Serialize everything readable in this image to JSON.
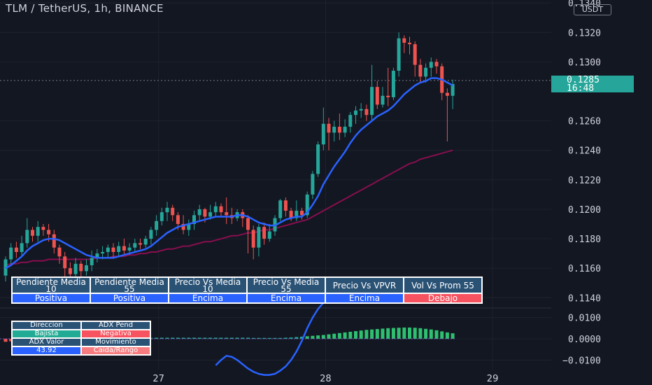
{
  "header": {
    "title": "TLM / TetherUS, 1h, BINANCE"
  },
  "price_axis": {
    "unit": "USDT"
  },
  "last_price": {
    "value": "0.1285",
    "countdown": "16:48"
  },
  "colors": {
    "background": "#131722",
    "bull": "#26a69a",
    "bear": "#ef5350",
    "ma_fast": "#2962ff",
    "ma_slow": "#880e4f",
    "grid": "#1e222d",
    "table_header": "#2a5275",
    "status_blue": "#2962ff",
    "status_red": "#f7525f",
    "status_green": "#22ab94",
    "status_pink": "#f77c80"
  },
  "status_table": {
    "headers": [
      "Pendiente Media 10",
      "Pendiente Media 55",
      "Precio Vs Media 10",
      "Precio Vs Media 55",
      "Precio Vs VPVR",
      "Vol Vs Prom 55"
    ],
    "values": [
      {
        "text": "Positiva",
        "color": "#2962ff"
      },
      {
        "text": "Positiva",
        "color": "#2962ff"
      },
      {
        "text": "Encima",
        "color": "#2962ff"
      },
      {
        "text": "Encima",
        "color": "#2962ff"
      },
      {
        "text": "Encima",
        "color": "#2962ff"
      },
      {
        "text": "Debajo",
        "color": "#f7525f"
      }
    ]
  },
  "adx_table": {
    "rows": [
      [
        {
          "text": "Direccion",
          "color": "#2a5275"
        },
        {
          "text": "ADX Pend",
          "color": "#2a5275"
        }
      ],
      [
        {
          "text": "Bajista",
          "color": "#22ab94"
        },
        {
          "text": "Negativa",
          "color": "#f7525f"
        }
      ],
      [
        {
          "text": "ADX Valor",
          "color": "#2a5275"
        },
        {
          "text": "Movimiento",
          "color": "#2a5275"
        }
      ],
      [
        {
          "text": "43.92",
          "color": "#2962ff"
        },
        {
          "text": "Caida/Rango",
          "color": "#f77c80"
        }
      ]
    ]
  },
  "chart_data": [
    {
      "type": "candlestick",
      "title": "TLM / TetherUS, 1h, BINANCE",
      "y_ticks": [
        "0.1140",
        "0.1160",
        "0.1180",
        "0.1200",
        "0.1220",
        "0.1240",
        "0.1260",
        "0.1300",
        "0.1320",
        "0.1340"
      ],
      "y_tick_values": [
        0.114,
        0.116,
        0.118,
        0.12,
        0.122,
        0.124,
        0.126,
        0.13,
        0.132,
        0.134
      ],
      "ylim": [
        0.1133,
        0.1342
      ],
      "x_ticks": [
        "27",
        "28",
        "29"
      ],
      "x_tick_index": [
        28.4,
        59.4,
        90.4
      ],
      "candles": [
        [
          0.1155,
          0.1166,
          0.1151,
          0.1168
        ],
        [
          0.1166,
          0.1174,
          0.1163,
          0.1177
        ],
        [
          0.1174,
          0.1171,
          0.1167,
          0.1178
        ],
        [
          0.1171,
          0.1177,
          0.1168,
          0.1182
        ],
        [
          0.1177,
          0.1186,
          0.1174,
          0.1194
        ],
        [
          0.1186,
          0.1182,
          0.1178,
          0.1188
        ],
        [
          0.1182,
          0.1188,
          0.1178,
          0.1192
        ],
        [
          0.1188,
          0.1186,
          0.1182,
          0.119
        ],
        [
          0.1186,
          0.1183,
          0.1178,
          0.119
        ],
        [
          0.1183,
          0.1174,
          0.117,
          0.1186
        ],
        [
          0.1174,
          0.1168,
          0.1163,
          0.1176
        ],
        [
          0.1168,
          0.116,
          0.1146,
          0.1171
        ],
        [
          0.116,
          0.1156,
          0.115,
          0.1164
        ],
        [
          0.1156,
          0.1163,
          0.1152,
          0.1167
        ],
        [
          0.1163,
          0.1158,
          0.1154,
          0.1165
        ],
        [
          0.1158,
          0.1162,
          0.1155,
          0.1166
        ],
        [
          0.1162,
          0.1167,
          0.1158,
          0.1172
        ],
        [
          0.1167,
          0.117,
          0.1164,
          0.1173
        ],
        [
          0.117,
          0.1171,
          0.1166,
          0.1175
        ],
        [
          0.1171,
          0.1174,
          0.1167,
          0.1176
        ],
        [
          0.1174,
          0.1171,
          0.1167,
          0.1177
        ],
        [
          0.1171,
          0.1175,
          0.1168,
          0.1178
        ],
        [
          0.1175,
          0.1172,
          0.1169,
          0.118
        ],
        [
          0.1172,
          0.1174,
          0.1169,
          0.1177
        ],
        [
          0.1174,
          0.1177,
          0.1171,
          0.118
        ],
        [
          0.1177,
          0.1176,
          0.1173,
          0.118
        ],
        [
          0.1176,
          0.118,
          0.1174,
          0.1182
        ],
        [
          0.118,
          0.1186,
          0.1176,
          0.1188
        ],
        [
          0.1186,
          0.1192,
          0.1182,
          0.1196
        ],
        [
          0.1192,
          0.1198,
          0.1189,
          0.1201
        ],
        [
          0.1198,
          0.1201,
          0.1192,
          0.1205
        ],
        [
          0.1201,
          0.1196,
          0.1192,
          0.1203
        ],
        [
          0.1196,
          0.119,
          0.1186,
          0.1198
        ],
        [
          0.119,
          0.1186,
          0.1183,
          0.1196
        ],
        [
          0.1186,
          0.119,
          0.1182,
          0.1193
        ],
        [
          0.119,
          0.1196,
          0.1186,
          0.1199
        ],
        [
          0.1196,
          0.12,
          0.1192,
          0.1203
        ],
        [
          0.12,
          0.1195,
          0.1191,
          0.1201
        ],
        [
          0.1195,
          0.1198,
          0.1193,
          0.1203
        ],
        [
          0.1198,
          0.1202,
          0.1195,
          0.1205
        ],
        [
          0.1202,
          0.1198,
          0.1195,
          0.1204
        ],
        [
          0.1198,
          0.1196,
          0.119,
          0.1208
        ],
        [
          0.1196,
          0.1194,
          0.119,
          0.1201
        ],
        [
          0.1194,
          0.1198,
          0.1192,
          0.12
        ],
        [
          0.1198,
          0.1194,
          0.1188,
          0.12
        ],
        [
          0.1194,
          0.1186,
          0.117,
          0.1196
        ],
        [
          0.1186,
          0.1174,
          0.1166,
          0.1189
        ],
        [
          0.1174,
          0.1188,
          0.1168,
          0.119
        ],
        [
          0.1188,
          0.118,
          0.1176,
          0.1191
        ],
        [
          0.118,
          0.1185,
          0.1178,
          0.119
        ],
        [
          0.1185,
          0.1194,
          0.1182,
          0.1196
        ],
        [
          0.1194,
          0.1206,
          0.1192,
          0.1207
        ],
        [
          0.1206,
          0.1199,
          0.1195,
          0.1208
        ],
        [
          0.1199,
          0.1194,
          0.1192,
          0.1201
        ],
        [
          0.1194,
          0.1199,
          0.1192,
          0.1206
        ],
        [
          0.1199,
          0.1196,
          0.1193,
          0.1201
        ],
        [
          0.1196,
          0.121,
          0.1194,
          0.1212
        ],
        [
          0.121,
          0.1224,
          0.1207,
          0.1226
        ],
        [
          0.1224,
          0.1244,
          0.1222,
          0.1246
        ],
        [
          0.1244,
          0.1258,
          0.124,
          0.1269
        ],
        [
          0.1258,
          0.1252,
          0.124,
          0.1262
        ],
        [
          0.1252,
          0.1256,
          0.1246,
          0.126
        ],
        [
          0.1256,
          0.1252,
          0.1247,
          0.1265
        ],
        [
          0.1252,
          0.1256,
          0.1249,
          0.1261
        ],
        [
          0.1256,
          0.1264,
          0.1252,
          0.1266
        ],
        [
          0.1264,
          0.1267,
          0.1258,
          0.127
        ],
        [
          0.1267,
          0.1268,
          0.1262,
          0.1272
        ],
        [
          0.1268,
          0.1264,
          0.126,
          0.1271
        ],
        [
          0.1264,
          0.1283,
          0.126,
          0.1298
        ],
        [
          0.1283,
          0.1271,
          0.1268,
          0.1287
        ],
        [
          0.1271,
          0.1277,
          0.1269,
          0.1283
        ],
        [
          0.1277,
          0.1276,
          0.127,
          0.1296
        ],
        [
          0.1276,
          0.1294,
          0.1274,
          0.1296
        ],
        [
          0.1294,
          0.1316,
          0.129,
          0.132
        ],
        [
          0.1316,
          0.1313,
          0.1306,
          0.1318
        ],
        [
          0.1313,
          0.1312,
          0.1305,
          0.1317
        ],
        [
          0.1312,
          0.1298,
          0.129,
          0.1314
        ],
        [
          0.1298,
          0.129,
          0.1286,
          0.1302
        ],
        [
          0.129,
          0.1296,
          0.1286,
          0.1299
        ],
        [
          0.1296,
          0.13,
          0.129,
          0.1303
        ],
        [
          0.13,
          0.1297,
          0.1292,
          0.1302
        ],
        [
          0.1297,
          0.1279,
          0.1274,
          0.1299
        ],
        [
          0.1279,
          0.1277,
          0.1246,
          0.1282
        ],
        [
          0.1277,
          0.1285,
          0.1268,
          0.1288
        ]
      ],
      "ma_10": [
        0.116,
        0.1162,
        0.1165,
        0.1168,
        0.1172,
        0.1175,
        0.1177,
        0.1179,
        0.118,
        0.118,
        0.1179,
        0.1177,
        0.1175,
        0.1173,
        0.1171,
        0.1169,
        0.1168,
        0.1167,
        0.1167,
        0.1167,
        0.1167,
        0.1168,
        0.1169,
        0.117,
        0.1171,
        0.1172,
        0.1173,
        0.1175,
        0.1178,
        0.1181,
        0.1184,
        0.1186,
        0.1188,
        0.1189,
        0.119,
        0.1191,
        0.1192,
        0.1193,
        0.1194,
        0.1195,
        0.1195,
        0.1195,
        0.1195,
        0.1196,
        0.1196,
        0.1195,
        0.1193,
        0.1191,
        0.119,
        0.1189,
        0.1189,
        0.1191,
        0.1193,
        0.1194,
        0.1195,
        0.1195,
        0.1198,
        0.1203,
        0.1209,
        0.1217,
        0.1223,
        0.1229,
        0.1234,
        0.1239,
        0.1245,
        0.125,
        0.1254,
        0.1257,
        0.126,
        0.1263,
        0.1265,
        0.1267,
        0.127,
        0.1274,
        0.1278,
        0.1281,
        0.1284,
        0.1286,
        0.1287,
        0.1289,
        0.1289,
        0.1288,
        0.1286,
        0.1284
      ],
      "ma_55": [
        0.1162,
        0.1163,
        0.1163,
        0.1164,
        0.1164,
        0.1165,
        0.1165,
        0.1165,
        0.1166,
        0.1166,
        0.1166,
        0.1166,
        0.1166,
        0.1166,
        0.1166,
        0.1166,
        0.1166,
        0.1167,
        0.1167,
        0.1167,
        0.1168,
        0.1168,
        0.1168,
        0.1169,
        0.1169,
        0.117,
        0.117,
        0.1171,
        0.1171,
        0.1172,
        0.1173,
        0.1173,
        0.1174,
        0.1175,
        0.1175,
        0.1176,
        0.1177,
        0.1178,
        0.1178,
        0.1179,
        0.118,
        0.1181,
        0.1182,
        0.1182,
        0.1183,
        0.1184,
        0.1184,
        0.1185,
        0.1186,
        0.1186,
        0.1187,
        0.1188,
        0.1189,
        0.119,
        0.1191,
        0.1192,
        0.1193,
        0.1195,
        0.1197,
        0.1199,
        0.1201,
        0.1203,
        0.1205,
        0.1207,
        0.1209,
        0.1211,
        0.1213,
        0.1215,
        0.1217,
        0.1219,
        0.1221,
        0.1223,
        0.1225,
        0.1227,
        0.1229,
        0.1231,
        0.1232,
        0.1234,
        0.1235,
        0.1236,
        0.1237,
        0.1238,
        0.1239,
        0.124
      ]
    },
    {
      "type": "bar+line",
      "y_ticks": [
        "0.0100",
        "0.0000",
        "−0.0100"
      ],
      "y_tick_values": [
        0.01,
        0.0,
        -0.01
      ],
      "ylim": [
        -0.0145,
        0.0145
      ],
      "histogram": [
        -0.0014,
        -0.0012,
        -0.001,
        -0.0008,
        -0.0006,
        -0.0005,
        -0.0004,
        -0.0003,
        -0.0002,
        -0.0001,
        0.0,
        0.0001,
        0.0001,
        0.0002,
        0.0002,
        0.0002,
        0.0003,
        0.0003,
        0.0003,
        0.0003,
        0.0004,
        0.0004,
        0.0004,
        0.0004,
        0.0004,
        0.0004,
        0.0004,
        0.0004,
        0.0005,
        0.0005,
        0.0005,
        0.0005,
        0.0005,
        0.0005,
        0.0005,
        0.0005,
        0.0005,
        0.0005,
        0.0005,
        0.0005,
        0.0005,
        0.0005,
        0.0005,
        0.0005,
        0.0005,
        0.0005,
        0.0004,
        0.0004,
        0.0004,
        0.0004,
        0.0004,
        0.0004,
        0.0005,
        0.0006,
        0.0008,
        0.001,
        0.0012,
        0.0014,
        0.0016,
        0.0018,
        0.0021,
        0.0024,
        0.0027,
        0.003,
        0.0033,
        0.0036,
        0.0039,
        0.0042,
        0.0044,
        0.0046,
        0.0048,
        0.005,
        0.0051,
        0.0052,
        0.0053,
        0.0053,
        0.0052,
        0.005,
        0.0047,
        0.0044,
        0.004,
        0.0035,
        0.003,
        0.0026
      ],
      "line_x": [
        39,
        40,
        41,
        42,
        43,
        44,
        45,
        46,
        47,
        48,
        49,
        50,
        51,
        52,
        53,
        54,
        55,
        56,
        57,
        58,
        59
      ],
      "line": [
        -0.0125,
        -0.01,
        -0.008,
        -0.0085,
        -0.01,
        -0.012,
        -0.014,
        -0.0155,
        -0.0165,
        -0.017,
        -0.017,
        -0.0165,
        -0.015,
        -0.013,
        -0.01,
        -0.006,
        -0.001,
        0.005,
        0.01,
        0.014,
        0.017
      ]
    }
  ]
}
